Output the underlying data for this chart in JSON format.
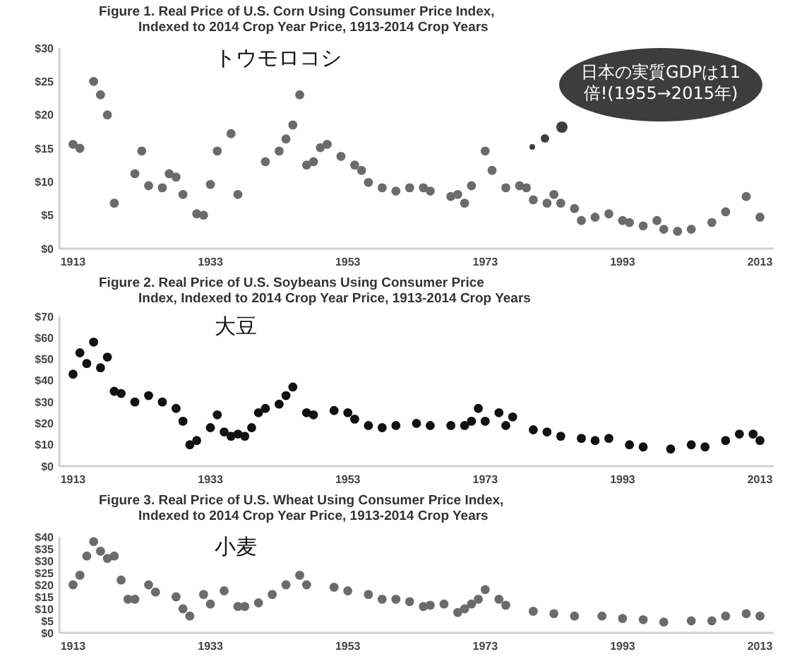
{
  "chart_data": [
    {
      "type": "scatter",
      "title": "Figure 1.  Real Price of U.S. Corn Using Consumer Price Index,\nIndexed to 2014 Crop Year Price, 1913-2014 Crop Years",
      "marker": "circle",
      "legend": false,
      "grid": false,
      "annotations": [
        "日本の実質GDPは11\n倍!(1955→2015年)"
      ],
      "xlim": [
        1911,
        2015
      ],
      "xticks": [
        1913,
        1933,
        1953,
        1973,
        1993,
        2013
      ],
      "ylim": [
        0,
        30
      ],
      "yticks": [
        {
          "value": 0,
          "label": "$0"
        },
        {
          "value": 5,
          "label": "$5"
        },
        {
          "value": 10,
          "label": "$10"
        },
        {
          "value": 15,
          "label": "$15"
        },
        {
          "value": 20,
          "label": "$20"
        },
        {
          "value": 25,
          "label": "$25"
        },
        {
          "value": 30,
          "label": "$30"
        }
      ],
      "series": [
        {
          "name": "トウモロコシ",
          "color": "#6b6b6b",
          "x": [
            1913,
            1914,
            1916,
            1917,
            1918,
            1919,
            1922,
            1923,
            1924,
            1926,
            1927,
            1928,
            1929,
            1931,
            1932,
            1933,
            1934,
            1936,
            1937,
            1941,
            1943,
            1944,
            1945,
            1946,
            1947,
            1948,
            1949,
            1950,
            1952,
            1954,
            1955,
            1956,
            1958,
            1960,
            1962,
            1964,
            1965,
            1968,
            1969,
            1970,
            1971,
            1973,
            1974,
            1976,
            1978,
            1979,
            1980,
            1982,
            1983,
            1984,
            1986,
            1987,
            1989,
            1991,
            1993,
            1994,
            1996,
            1998,
            1999,
            2001,
            2003,
            2006,
            2008,
            2011,
            2013
          ],
          "values": [
            15.6,
            15,
            25,
            23,
            20,
            6.8,
            11.2,
            14.6,
            9.4,
            9.1,
            11.2,
            10.7,
            8.1,
            5.2,
            5,
            9.6,
            14.6,
            17.2,
            8.1,
            13,
            14.6,
            16.4,
            18.5,
            23,
            12.5,
            13,
            15.1,
            15.6,
            13.8,
            12.5,
            11.7,
            9.9,
            9.1,
            8.6,
            9.1,
            9.1,
            8.6,
            7.8,
            8.1,
            6.8,
            9.4,
            14.6,
            11.7,
            9.1,
            9.4,
            9.1,
            7.3,
            6.8,
            8.1,
            6.8,
            6,
            4.2,
            4.7,
            5.2,
            4.2,
            3.9,
            3.4,
            4.2,
            2.9,
            2.6,
            2.9,
            3.9,
            5.5,
            7.8,
            4.7
          ]
        }
      ]
    },
    {
      "type": "scatter",
      "title": "Figure 2.  Real Price of U.S. Soybeans Using Consumer Price\nIndex, Indexed to 2014 Crop Year Price, 1913-2014 Crop Years",
      "marker": "circle",
      "legend": false,
      "grid": false,
      "xlim": [
        1911,
        2015
      ],
      "xticks": [
        1913,
        1933,
        1953,
        1973,
        1993,
        2013
      ],
      "ylim": [
        0,
        70
      ],
      "yticks": [
        {
          "value": 0,
          "label": "$0"
        },
        {
          "value": 10,
          "label": "$10"
        },
        {
          "value": 20,
          "label": "$20"
        },
        {
          "value": 30,
          "label": "$30"
        },
        {
          "value": 40,
          "label": "$40"
        },
        {
          "value": 50,
          "label": "$50"
        },
        {
          "value": 60,
          "label": "$60"
        },
        {
          "value": 70,
          "label": "$70"
        }
      ],
      "series": [
        {
          "name": "大豆",
          "color": "#111111",
          "x": [
            1913,
            1914,
            1915,
            1916,
            1917,
            1918,
            1919,
            1920,
            1922,
            1924,
            1926,
            1928,
            1929,
            1930,
            1931,
            1933,
            1934,
            1935,
            1936,
            1937,
            1938,
            1939,
            1940,
            1941,
            1943,
            1944,
            1945,
            1947,
            1948,
            1951,
            1953,
            1954,
            1956,
            1958,
            1960,
            1963,
            1965,
            1968,
            1970,
            1971,
            1972,
            1973,
            1975,
            1976,
            1977,
            1980,
            1982,
            1984,
            1987,
            1989,
            1991,
            1994,
            1996,
            2000,
            2003,
            2005,
            2008,
            2010,
            2012,
            2013
          ],
          "values": [
            43,
            53,
            48,
            58,
            46,
            51,
            35,
            34,
            30,
            33,
            30,
            27,
            21,
            10,
            12,
            18,
            24,
            16,
            14,
            15,
            14,
            18,
            25,
            27,
            29,
            33,
            37,
            25,
            24,
            26,
            25,
            22,
            19,
            18,
            19,
            20,
            19,
            19,
            19,
            21,
            27,
            21,
            25,
            19,
            23,
            17,
            16,
            14,
            13,
            12,
            13,
            10,
            9,
            8,
            10,
            9,
            12,
            15,
            15,
            12
          ]
        }
      ]
    },
    {
      "type": "scatter",
      "title": "Figure 3.  Real Price of U.S. Wheat Using Consumer Price Index,\nIndexed to 2014 Crop Year Price, 1913-2014 Crop Years",
      "marker": "circle",
      "legend": false,
      "grid": false,
      "xlim": [
        1911,
        2015
      ],
      "xticks": [
        1913,
        1933,
        1953,
        1973,
        1993,
        2013
      ],
      "ylim": [
        0,
        40
      ],
      "yticks": [
        {
          "value": 0,
          "label": "$0"
        },
        {
          "value": 5,
          "label": "$5"
        },
        {
          "value": 10,
          "label": "$10"
        },
        {
          "value": 15,
          "label": "$15"
        },
        {
          "value": 20,
          "label": "$20"
        },
        {
          "value": 25,
          "label": "$25"
        },
        {
          "value": 30,
          "label": "$30"
        },
        {
          "value": 35,
          "label": "$35"
        },
        {
          "value": 40,
          "label": "$40"
        }
      ],
      "series": [
        {
          "name": "小麦",
          "color": "#6b6b6b",
          "x": [
            1913,
            1914,
            1915,
            1916,
            1917,
            1918,
            1919,
            1920,
            1921,
            1922,
            1924,
            1925,
            1928,
            1929,
            1930,
            1932,
            1933,
            1935,
            1937,
            1938,
            1940,
            1942,
            1944,
            1946,
            1947,
            1951,
            1953,
            1956,
            1958,
            1960,
            1962,
            1964,
            1965,
            1967,
            1969,
            1970,
            1971,
            1972,
            1973,
            1975,
            1976,
            1980,
            1983,
            1986,
            1990,
            1993,
            1996,
            1999,
            2003,
            2006,
            2008,
            2011,
            2013
          ],
          "values": [
            20,
            24,
            32,
            38,
            34,
            31,
            32,
            22,
            14,
            14,
            20,
            17,
            15,
            10,
            7,
            16,
            12,
            17.5,
            11,
            11,
            12.5,
            16,
            20,
            24,
            20,
            19,
            17.5,
            16,
            14,
            14,
            13,
            11,
            11.5,
            12,
            8.5,
            10,
            12,
            14,
            18,
            14,
            11.5,
            9,
            8,
            7,
            7,
            6,
            5.5,
            4.5,
            5,
            5,
            7,
            8,
            7
          ]
        }
      ]
    }
  ]
}
